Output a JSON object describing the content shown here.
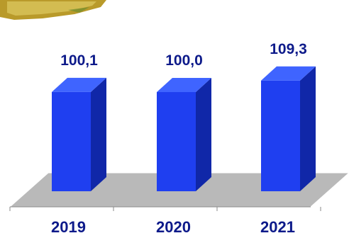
{
  "chart_data": {
    "type": "bar",
    "categories": [
      "2019",
      "2020",
      "2021"
    ],
    "values": [
      100.1,
      100.0,
      109.3
    ],
    "value_labels": [
      "100,1",
      "100,0",
      "109,3"
    ],
    "title": "",
    "xlabel": "",
    "ylabel": "",
    "ylim": [
      0,
      115
    ],
    "grid": false,
    "legend": "none"
  },
  "colors": {
    "bar_front": "#1f3ff0",
    "bar_side": "#1027a8",
    "bar_top": "#3f64ff",
    "floor": "#b9b9b9",
    "label_text": "#0d1a8a",
    "image_fill": "#b99a2a"
  },
  "decor": {
    "top_left_image": "decorative-corner-image"
  }
}
